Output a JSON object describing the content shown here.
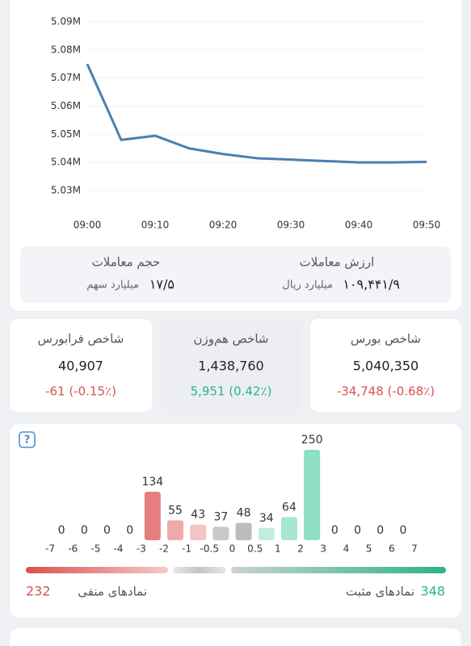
{
  "chart_data": [
    {
      "type": "line",
      "x": [
        0,
        5,
        10,
        15,
        20,
        25,
        30,
        35,
        40,
        45,
        50
      ],
      "series": [
        {
          "color": "#4a7fb0",
          "values": [
            5075000,
            5048000,
            5049500,
            5045000,
            5043000,
            5041500,
            5041000,
            5040500,
            5040000,
            5040000,
            5040200
          ]
        }
      ],
      "xlim": [
        0,
        50
      ],
      "xticks": [
        {
          "value": 0,
          "label": "09:00"
        },
        {
          "value": 10,
          "label": "09:10"
        },
        {
          "value": 20,
          "label": "09:20"
        },
        {
          "value": 30,
          "label": "09:30"
        },
        {
          "value": 40,
          "label": "09:40"
        },
        {
          "value": 50,
          "label": "09:50"
        }
      ],
      "ylim": [
        5030000,
        5090000
      ],
      "yticks": [
        {
          "value": 5030000,
          "label": "5.03M"
        },
        {
          "value": 5040000,
          "label": "5.04M"
        },
        {
          "value": 5050000,
          "label": "5.05M"
        },
        {
          "value": 5060000,
          "label": "5.06M"
        },
        {
          "value": 5070000,
          "label": "5.07M"
        },
        {
          "value": 5080000,
          "label": "5.08M"
        },
        {
          "value": 5090000,
          "label": "5.09M"
        }
      ],
      "grid": true
    },
    {
      "type": "histogram",
      "bins": [
        -7,
        -6,
        -5,
        -4,
        -3,
        -2,
        -1,
        -0.5,
        0,
        0.5,
        1,
        2,
        3,
        4,
        5,
        6,
        7
      ],
      "values": [
        0,
        0,
        0,
        0,
        134,
        55,
        43,
        37,
        48,
        34,
        64,
        250,
        0,
        0,
        0,
        0
      ],
      "colors": [
        "#e57f7f",
        "#e57f7f",
        "#e57f7f",
        "#e57f7f",
        "#e57f7f",
        "#f0a9a9",
        "#f5c4c4",
        "#c9c9cd",
        "#bcbcc1",
        "#bfeedd",
        "#a6e7cf",
        "#8fe0c2",
        "#8fe0c2",
        "#8fe0c2",
        "#8fe0c2",
        "#8fe0c2"
      ],
      "negative_label": "نمادهای منفی",
      "negative_count": 232,
      "positive_label": "نمادهای مثبت",
      "positive_count": 348
    }
  ],
  "trading": {
    "value_label": "ارزش معاملات",
    "value": "۱۰۹,۴۴۱/۹",
    "value_unit": "میلیارد ریال",
    "volume_label": "حجم معاملات",
    "volume": "۱۷/۵",
    "volume_unit": "میلیارد سهم"
  },
  "indices": [
    {
      "name": "شاخص بورس",
      "value": "5,040,350",
      "change": "-34,748 (-0.68٪)",
      "color": "#d9534f"
    },
    {
      "name": "شاخص هم‌وزن",
      "value": "1,438,760",
      "change": "5,951 (0.42٪)",
      "color": "#2bb38a"
    },
    {
      "name": "شاخص فرابورس",
      "value": "40,907",
      "change": "-61 (-0.15٪)",
      "color": "#d9534f"
    }
  ]
}
